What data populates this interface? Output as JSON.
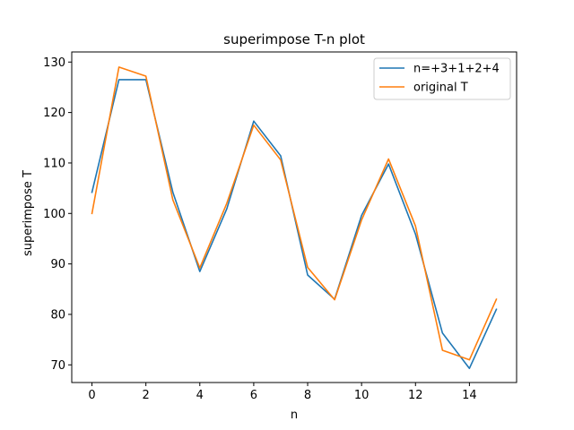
{
  "chart_data": {
    "type": "line",
    "title": "superimpose T-n plot",
    "xlabel": "n",
    "ylabel": "superimpose T",
    "x": [
      0,
      1,
      2,
      3,
      4,
      5,
      6,
      7,
      8,
      9,
      10,
      11,
      12,
      13,
      14,
      15
    ],
    "xlim": [
      -0.75,
      15.75
    ],
    "ylim": [
      66.5,
      132
    ],
    "xticks": [
      0,
      2,
      4,
      6,
      8,
      10,
      12,
      14
    ],
    "yticks": [
      70,
      80,
      90,
      100,
      110,
      120,
      130
    ],
    "grid": false,
    "legend_position": "top-right",
    "series": [
      {
        "name": "n=+3+1+2+4",
        "color": "#1f77b4",
        "values": [
          104.2,
          126.5,
          126.5,
          104.2,
          88.5,
          100.9,
          118.3,
          111.4,
          87.8,
          83.0,
          99.6,
          109.8,
          95.9,
          76.3,
          69.3,
          81.0
        ]
      },
      {
        "name": "original T",
        "color": "#ff7f0e",
        "values": [
          100.0,
          129.0,
          127.2,
          102.7,
          89.2,
          102.0,
          117.5,
          110.6,
          89.3,
          82.9,
          98.7,
          110.8,
          97.5,
          72.9,
          71.0,
          83.0
        ]
      }
    ]
  }
}
